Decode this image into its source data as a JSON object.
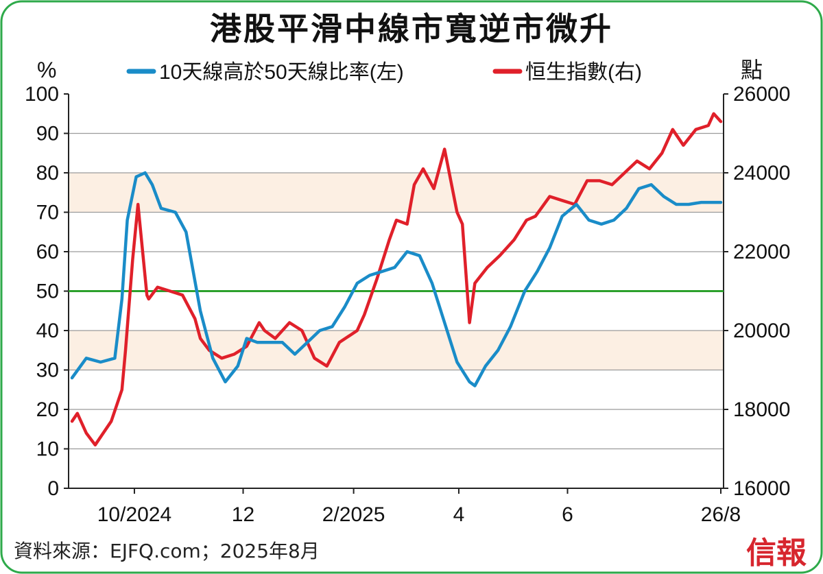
{
  "title": "港股平滑中線市寬逆市微升",
  "source": "資料來源：EJFQ.com；2025年8月",
  "brand": "信報",
  "chart_data": {
    "type": "line",
    "left_axis": {
      "unit": "%",
      "range": [
        0,
        100
      ],
      "ticks": [
        "0",
        "10",
        "20",
        "30",
        "40",
        "50",
        "60",
        "70",
        "80",
        "90",
        "100"
      ]
    },
    "right_axis": {
      "unit": "點",
      "range": [
        16000,
        26000
      ],
      "ticks": [
        "16000",
        "18000",
        "20000",
        "22000",
        "24000",
        "26000"
      ]
    },
    "x_ticks": [
      "10/2024",
      "12",
      "2/2025",
      "4",
      "6",
      "26/8"
    ],
    "reference_line": {
      "value": 50,
      "color": "#2ca02c"
    },
    "shaded_bands": [
      [
        30,
        40
      ],
      [
        70,
        80
      ]
    ],
    "band_color": "#fcefe3",
    "legend_position": "top",
    "series": [
      {
        "name": "10天線高於50天線比率(左)",
        "axis": "left",
        "color": "#1a8cc8",
        "x": [
          "2024-08-27",
          "2024-09-04",
          "2024-09-12",
          "2024-09-20",
          "2024-09-24",
          "2024-09-27",
          "2024-10-02",
          "2024-10-07",
          "2024-10-11",
          "2024-10-16",
          "2024-10-24",
          "2024-10-30",
          "2024-11-07",
          "2024-11-14",
          "2024-11-21",
          "2024-11-28",
          "2024-12-03",
          "2024-12-09",
          "2024-12-16",
          "2024-12-23",
          "2024-12-30",
          "2025-01-06",
          "2025-01-13",
          "2025-01-20",
          "2025-01-27",
          "2025-02-03",
          "2025-02-10",
          "2025-02-17",
          "2025-02-24",
          "2025-03-03",
          "2025-03-10",
          "2025-03-17",
          "2025-03-24",
          "2025-03-31",
          "2025-04-07",
          "2025-04-10",
          "2025-04-16",
          "2025-04-23",
          "2025-04-30",
          "2025-05-08",
          "2025-05-15",
          "2025-05-22",
          "2025-05-29",
          "2025-06-06",
          "2025-06-13",
          "2025-06-20",
          "2025-06-27",
          "2025-07-04",
          "2025-07-11",
          "2025-07-18",
          "2025-07-25",
          "2025-08-01",
          "2025-08-08",
          "2025-08-15",
          "2025-08-26"
        ],
        "values": [
          28,
          33,
          32,
          33,
          48,
          68,
          79,
          80,
          77,
          71,
          70,
          65,
          45,
          33,
          27,
          31,
          38,
          37,
          37,
          37,
          34,
          37,
          40,
          41,
          46,
          52,
          54,
          55,
          56,
          60,
          59,
          52,
          42,
          32,
          27,
          26,
          31,
          35,
          41,
          50,
          55,
          61,
          69,
          72,
          68,
          67,
          68,
          71,
          76,
          77,
          74,
          72,
          72,
          72.5,
          72.5
        ]
      },
      {
        "name": "恒生指數(右)",
        "axis": "right",
        "color": "#e0202a",
        "x": [
          "2024-08-27",
          "2024-08-30",
          "2024-09-04",
          "2024-09-09",
          "2024-09-12",
          "2024-09-18",
          "2024-09-24",
          "2024-09-26",
          "2024-09-30",
          "2024-10-03",
          "2024-10-08",
          "2024-10-09",
          "2024-10-14",
          "2024-10-21",
          "2024-10-28",
          "2024-11-04",
          "2024-11-07",
          "2024-11-12",
          "2024-11-19",
          "2024-11-26",
          "2024-12-03",
          "2024-12-10",
          "2024-12-13",
          "2024-12-19",
          "2024-12-27",
          "2025-01-03",
          "2025-01-10",
          "2025-01-17",
          "2025-01-24",
          "2025-02-03",
          "2025-02-07",
          "2025-02-14",
          "2025-02-21",
          "2025-02-25",
          "2025-03-03",
          "2025-03-07",
          "2025-03-12",
          "2025-03-18",
          "2025-03-24",
          "2025-03-31",
          "2025-04-03",
          "2025-04-07",
          "2025-04-10",
          "2025-04-17",
          "2025-04-24",
          "2025-05-02",
          "2025-05-09",
          "2025-05-14",
          "2025-05-22",
          "2025-05-29",
          "2025-06-05",
          "2025-06-12",
          "2025-06-19",
          "2025-06-26",
          "2025-07-03",
          "2025-07-10",
          "2025-07-17",
          "2025-07-24",
          "2025-07-30",
          "2025-08-05",
          "2025-08-12",
          "2025-08-19",
          "2025-08-22",
          "2025-08-26"
        ],
        "values": [
          17700,
          17900,
          17400,
          17100,
          17300,
          17700,
          18500,
          19500,
          21800,
          23200,
          20900,
          20800,
          21100,
          21000,
          20900,
          20300,
          19800,
          19500,
          19300,
          19400,
          19600,
          20200,
          20000,
          19800,
          20200,
          20000,
          19300,
          19100,
          19700,
          20000,
          20400,
          21300,
          22300,
          22800,
          22700,
          23700,
          24100,
          23600,
          24600,
          23000,
          22700,
          20200,
          21200,
          21600,
          21900,
          22300,
          22800,
          22900,
          23400,
          23300,
          23200,
          23800,
          23800,
          23700,
          24000,
          24300,
          24100,
          24500,
          25100,
          24700,
          25100,
          25200,
          25500,
          25300
        ]
      }
    ]
  }
}
